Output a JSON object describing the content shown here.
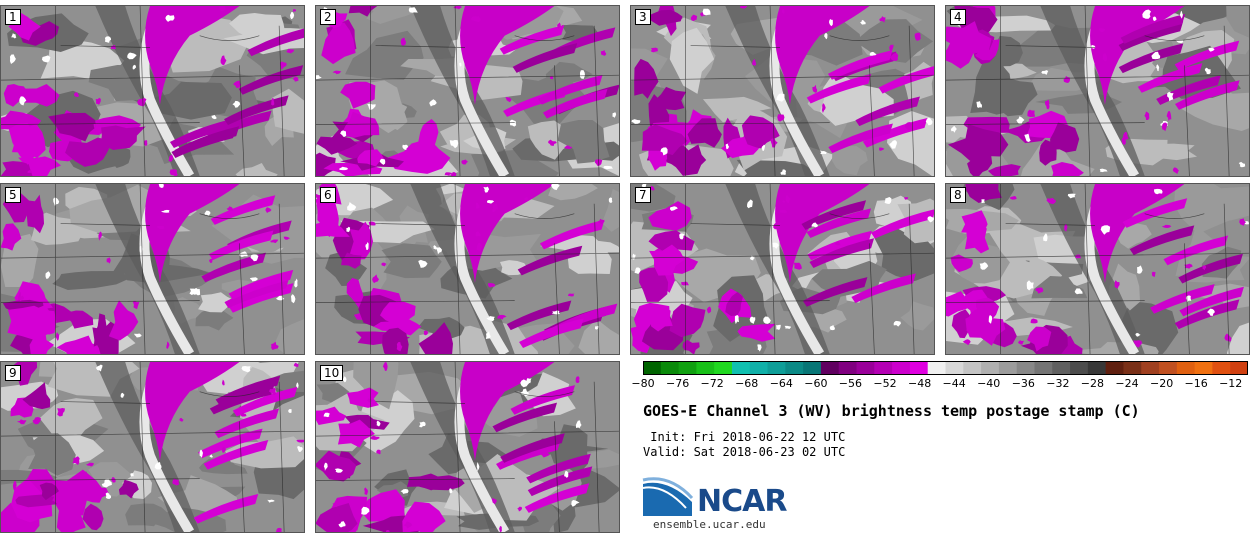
{
  "panels": [
    {
      "label": "1"
    },
    {
      "label": "2"
    },
    {
      "label": "3"
    },
    {
      "label": "4"
    },
    {
      "label": "5"
    },
    {
      "label": "6"
    },
    {
      "label": "7"
    },
    {
      "label": "8"
    },
    {
      "label": "9"
    },
    {
      "label": "10"
    }
  ],
  "colorbar": {
    "ticks": [
      "−80",
      "−76",
      "−72",
      "−68",
      "−64",
      "−60",
      "−56",
      "−52",
      "−48",
      "−44",
      "−40",
      "−36",
      "−32",
      "−28",
      "−24",
      "−20",
      "−16",
      "−12"
    ],
    "range": [
      -80,
      -10
    ],
    "colors": [
      "#006400",
      "#0a8a0a",
      "#10a010",
      "#18c018",
      "#20d820",
      "#10c0b0",
      "#10b0a8",
      "#0e9e98",
      "#0b8a86",
      "#087676",
      "#600060",
      "#800080",
      "#9a009a",
      "#b400b4",
      "#cc00cc",
      "#e000e0",
      "#f0f0f0",
      "#d8d8d8",
      "#c4c4c4",
      "#b0b0b0",
      "#9c9c9c",
      "#888888",
      "#747474",
      "#606060",
      "#4c4c4c",
      "#383838",
      "#602010",
      "#7a3018",
      "#a04020",
      "#c05020",
      "#e06010",
      "#f07010",
      "#e05010",
      "#d04010"
    ]
  },
  "title": "GOES-E Channel 3 (WV) brightness temp postage stamp (C)",
  "init": " Init: Fri 2018-06-22 12 UTC",
  "valid": "Valid: Sat 2018-06-23 02 UTC",
  "logo": {
    "text": "NCAR",
    "site": "ensemble.ucar.edu"
  }
}
